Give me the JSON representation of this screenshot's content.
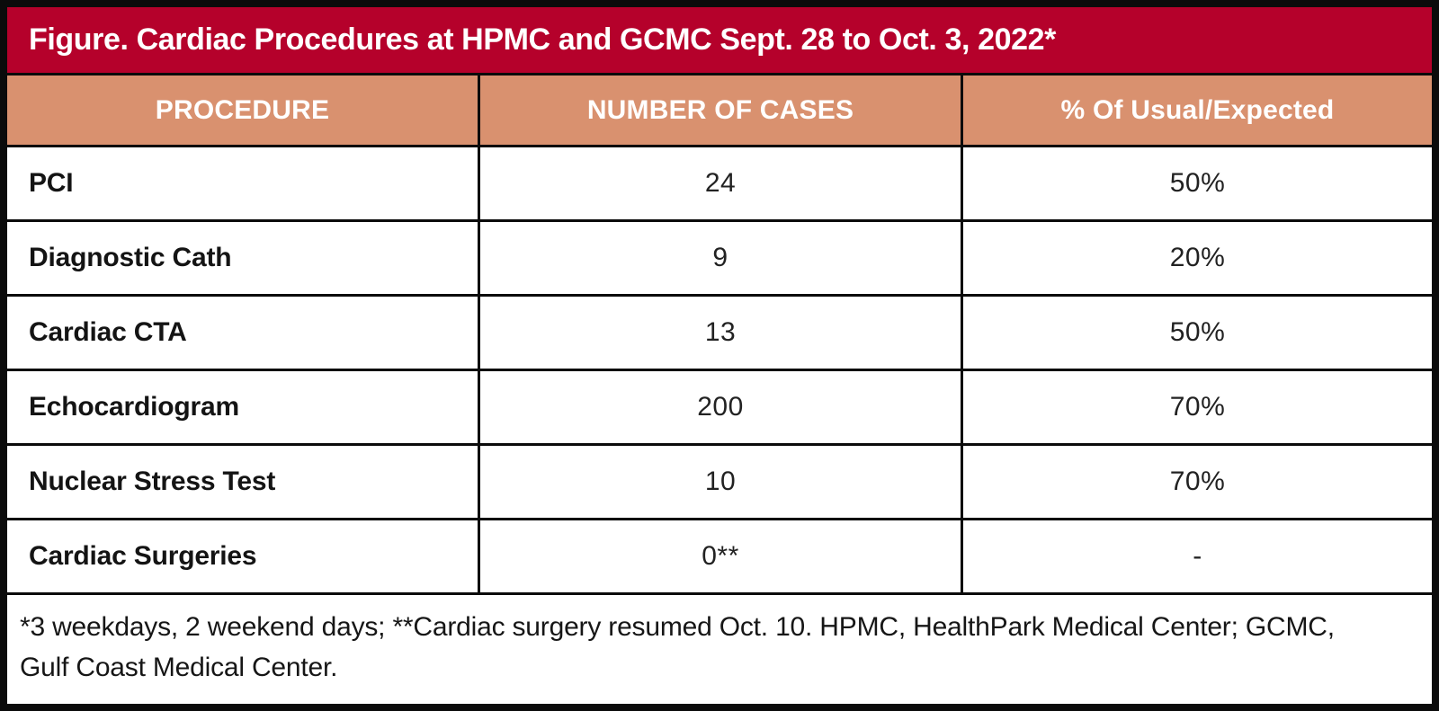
{
  "title": "Figure. Cardiac Procedures at HPMC and GCMC Sept. 28 to Oct. 3, 2022*",
  "chart_data": {
    "type": "table",
    "title": "Figure. Cardiac Procedures at HPMC and GCMC Sept. 28 to Oct. 3, 2022*",
    "columns": [
      "PROCEDURE",
      "NUMBER OF CASES",
      "% Of Usual/Expected"
    ],
    "rows": [
      [
        "PCI",
        "24",
        "50%"
      ],
      [
        "Diagnostic Cath",
        "9",
        "20%"
      ],
      [
        "Cardiac CTA",
        "13",
        "50%"
      ],
      [
        "Echocardiogram",
        "200",
        "70%"
      ],
      [
        "Nuclear Stress Test",
        "10",
        "70%"
      ],
      [
        "Cardiac Surgeries",
        "0**",
        "-"
      ]
    ],
    "footnote": "*3 weekdays, 2 weekend days; **Cardiac surgery resumed Oct. 10. HPMC, HealthPark Medical Center; GCMC, Gulf Coast Medical Center."
  },
  "colors": {
    "title_bar": "#b5012b",
    "header_row": "#d9916f",
    "grid_border": "#0b0b0b",
    "header_text": "#ffffff",
    "body_text": "#161616",
    "background": "#ffffff"
  }
}
